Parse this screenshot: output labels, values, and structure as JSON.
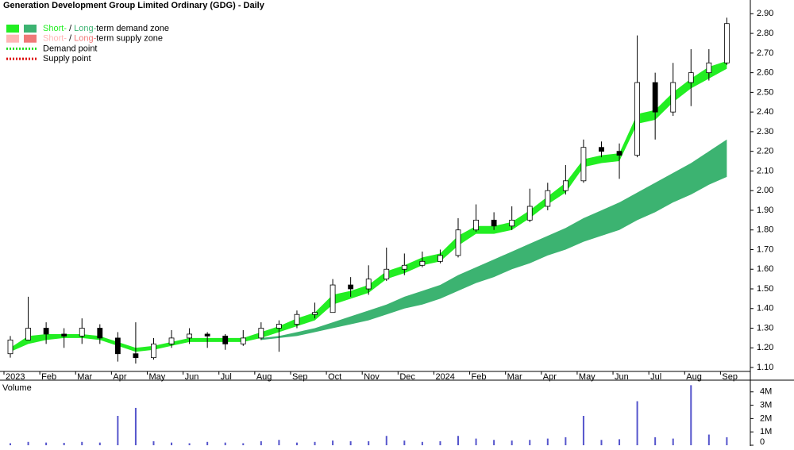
{
  "chart_data": {
    "type": "candlestick",
    "title": "Generation Development Group Limited Ordinary (GDG) - Daily",
    "categories": [
      "2023",
      null,
      "Feb",
      null,
      "Mar",
      null,
      "Apr",
      null,
      "May",
      null,
      "Jun",
      null,
      "Jul",
      null,
      "Aug",
      null,
      "Sep",
      null,
      "Oct",
      null,
      "Nov",
      null,
      "Dec",
      null,
      "2024",
      null,
      "Feb",
      null,
      "Mar",
      null,
      "Apr",
      null,
      "May",
      null,
      "Jun",
      null,
      "Jul",
      null,
      "Aug",
      null,
      "Sep"
    ],
    "open": [
      1.17,
      1.24,
      1.3,
      1.27,
      1.26,
      1.3,
      1.25,
      1.17,
      1.15,
      1.22,
      1.25,
      1.27,
      1.26,
      1.22,
      1.25,
      1.3,
      1.32,
      1.37,
      1.38,
      1.52,
      1.5,
      1.55,
      1.6,
      1.62,
      1.64,
      1.67,
      1.8,
      1.85,
      1.82,
      1.85,
      1.92,
      2.0,
      2.05,
      2.22,
      2.2,
      2.18,
      2.55,
      2.4,
      2.55,
      2.6,
      2.65
    ],
    "high": [
      1.26,
      1.46,
      1.33,
      1.3,
      1.35,
      1.32,
      1.28,
      1.33,
      1.25,
      1.29,
      1.3,
      1.28,
      1.27,
      1.29,
      1.33,
      1.34,
      1.39,
      1.43,
      1.55,
      1.56,
      1.62,
      1.71,
      1.68,
      1.69,
      1.7,
      1.86,
      1.93,
      1.89,
      1.92,
      2.01,
      2.04,
      2.13,
      2.26,
      2.25,
      2.24,
      2.79,
      2.6,
      2.65,
      2.72,
      2.72,
      2.88
    ],
    "low": [
      1.15,
      1.24,
      1.22,
      1.2,
      1.22,
      1.22,
      1.13,
      1.12,
      1.14,
      1.2,
      1.22,
      1.2,
      1.19,
      1.21,
      1.24,
      1.18,
      1.3,
      1.35,
      1.38,
      1.46,
      1.47,
      1.54,
      1.57,
      1.61,
      1.63,
      1.66,
      1.79,
      1.8,
      1.8,
      1.84,
      1.9,
      1.98,
      2.04,
      2.17,
      2.06,
      2.17,
      2.26,
      2.38,
      2.43,
      2.56,
      2.64
    ],
    "close": [
      1.24,
      1.3,
      1.27,
      1.26,
      1.3,
      1.25,
      1.17,
      1.15,
      1.22,
      1.25,
      1.27,
      1.26,
      1.22,
      1.25,
      1.3,
      1.32,
      1.37,
      1.38,
      1.52,
      1.5,
      1.55,
      1.6,
      1.62,
      1.64,
      1.67,
      1.8,
      1.85,
      1.82,
      1.85,
      1.92,
      2.0,
      2.05,
      2.22,
      2.2,
      2.18,
      2.55,
      2.4,
      2.55,
      2.6,
      2.65,
      2.85
    ],
    "up_color": "#ffffff",
    "down_color": "#000000",
    "short_demand": {
      "color": "#22ee22",
      "lower": [
        1.18,
        1.22,
        1.24,
        1.25,
        1.25,
        1.24,
        1.21,
        1.18,
        1.19,
        1.21,
        1.23,
        1.23,
        1.23,
        1.23,
        1.25,
        1.28,
        1.31,
        1.34,
        1.42,
        1.45,
        1.48,
        1.55,
        1.58,
        1.62,
        1.64,
        1.72,
        1.78,
        1.78,
        1.8,
        1.86,
        1.93,
        1.99,
        2.12,
        2.14,
        2.15,
        2.34,
        2.36,
        2.45,
        2.52,
        2.57,
        2.62
      ],
      "upper": [
        1.2,
        1.26,
        1.27,
        1.27,
        1.27,
        1.26,
        1.23,
        1.2,
        1.21,
        1.23,
        1.25,
        1.25,
        1.25,
        1.25,
        1.28,
        1.31,
        1.35,
        1.38,
        1.47,
        1.49,
        1.52,
        1.59,
        1.62,
        1.66,
        1.68,
        1.77,
        1.82,
        1.82,
        1.84,
        1.9,
        1.97,
        2.04,
        2.16,
        2.18,
        2.19,
        2.39,
        2.41,
        2.5,
        2.57,
        2.63,
        2.66
      ]
    },
    "long_demand": {
      "color": "#3cb371",
      "lower": [
        null,
        null,
        null,
        null,
        null,
        null,
        null,
        null,
        null,
        null,
        null,
        null,
        null,
        null,
        1.24,
        1.25,
        1.26,
        1.28,
        1.3,
        1.32,
        1.34,
        1.37,
        1.4,
        1.42,
        1.45,
        1.49,
        1.53,
        1.56,
        1.6,
        1.63,
        1.67,
        1.7,
        1.74,
        1.77,
        1.8,
        1.85,
        1.89,
        1.94,
        1.98,
        2.03,
        2.07
      ],
      "upper": [
        null,
        null,
        null,
        null,
        null,
        null,
        null,
        null,
        null,
        null,
        null,
        null,
        null,
        null,
        1.25,
        1.26,
        1.28,
        1.3,
        1.33,
        1.36,
        1.39,
        1.42,
        1.46,
        1.49,
        1.52,
        1.57,
        1.61,
        1.65,
        1.69,
        1.73,
        1.77,
        1.81,
        1.86,
        1.9,
        1.94,
        1.99,
        2.04,
        2.09,
        2.14,
        2.2,
        2.26
      ]
    },
    "ylim": [
      1.08,
      2.97
    ],
    "yticks": [
      {
        "value": 1.1,
        "label": "1.10"
      },
      {
        "value": 1.2,
        "label": "1.20"
      },
      {
        "value": 1.3,
        "label": "1.30"
      },
      {
        "value": 1.4,
        "label": "1.40"
      },
      {
        "value": 1.5,
        "label": "1.50"
      },
      {
        "value": 1.6,
        "label": "1.60"
      },
      {
        "value": 1.7,
        "label": "1.70"
      },
      {
        "value": 1.8,
        "label": "1.80"
      },
      {
        "value": 1.9,
        "label": "1.90"
      },
      {
        "value": 2.0,
        "label": "2.00"
      },
      {
        "value": 2.1,
        "label": "2.10"
      },
      {
        "value": 2.2,
        "label": "2.20"
      },
      {
        "value": 2.3,
        "label": "2.30"
      },
      {
        "value": 2.4,
        "label": "2.40"
      },
      {
        "value": 2.5,
        "label": "2.50"
      },
      {
        "value": 2.6,
        "label": "2.60"
      },
      {
        "value": 2.7,
        "label": "2.70"
      },
      {
        "value": 2.8,
        "label": "2.80"
      },
      {
        "value": 2.9,
        "label": "2.90"
      }
    ],
    "volume_title": "Volume",
    "volume_color": "#5555cc",
    "volume": [
      150000,
      250000,
      200000,
      180000,
      250000,
      200000,
      2200000,
      2800000,
      300000,
      200000,
      150000,
      250000,
      200000,
      150000,
      300000,
      400000,
      200000,
      250000,
      350000,
      300000,
      300000,
      700000,
      350000,
      250000,
      300000,
      700000,
      500000,
      400000,
      350000,
      400000,
      500000,
      600000,
      2200000,
      400000,
      450000,
      3300000,
      600000,
      500000,
      4500000,
      800000,
      600000
    ],
    "y2lim": [
      0,
      4640000
    ],
    "y2ticks": [
      {
        "value": 0,
        "label": "0"
      },
      {
        "value": 1000000,
        "label": "1M"
      },
      {
        "value": 2000000,
        "label": "2M"
      },
      {
        "value": 3000000,
        "label": "3M"
      },
      {
        "value": 4000000,
        "label": "4M"
      }
    ],
    "legend": [
      {
        "parts": [
          "Short-",
          " / ",
          "Long-",
          "term demand zone"
        ],
        "colors": [
          "#22ee22",
          "#3cb371"
        ],
        "style": "box"
      },
      {
        "parts": [
          "Short-",
          " / ",
          "Long-",
          "term supply zone"
        ],
        "colors": [
          "#ffb6b6",
          "#f07878"
        ],
        "style": "box"
      },
      {
        "parts": [
          "Demand point"
        ],
        "colors": [
          "#22dd22"
        ],
        "style": "dotted"
      },
      {
        "parts": [
          "Supply point"
        ],
        "colors": [
          "#dd0000"
        ],
        "style": "dotted"
      }
    ]
  }
}
